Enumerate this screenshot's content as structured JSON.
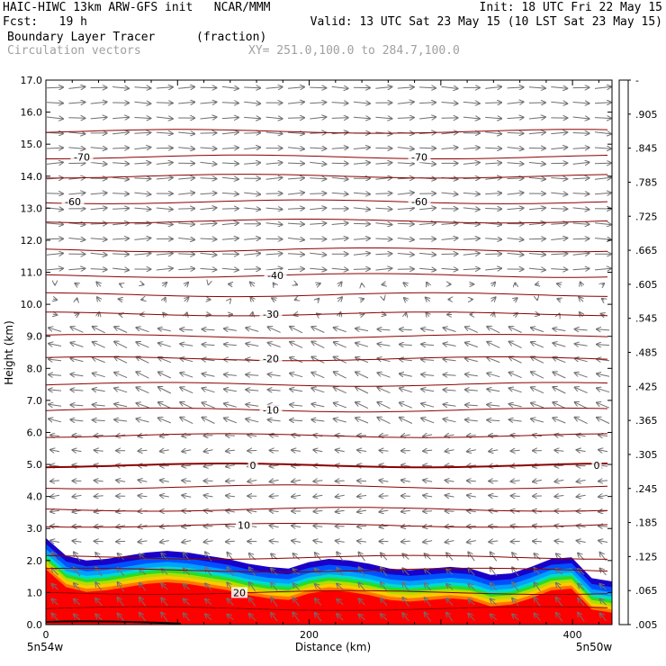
{
  "header": {
    "line1_left": "HAIC-HIWC 13km ARW-GFS init   NCAR/MMM",
    "line1_right": "Init: 18 UTC Fri 22 May 15",
    "line2_left": "Fcst:   19 h",
    "line2_right": "Valid: 13 UTC Sat 23 May 15 (10 LST Sat 23 May 15)",
    "field_name": "Boundary Layer Tracer",
    "field_units": "(fraction)",
    "vector_label": "Circulation vectors",
    "xy_range": "XY= 251.0,100.0 to 284.7,100.0"
  },
  "chart_data": {
    "type": "cross-section",
    "ylabel": "Height (km)",
    "xlabel": "Distance (km)",
    "ylim": [
      0,
      17
    ],
    "xlim": [
      0,
      430
    ],
    "y_ticks": [
      "0.0",
      "1.0",
      "2.0",
      "3.0",
      "4.0",
      "5.0",
      "6.0",
      "7.0",
      "8.0",
      "9.0",
      "10.0",
      "11.0",
      "12.0",
      "13.0",
      "14.0",
      "15.0",
      "16.0",
      "17.0"
    ],
    "x_ticks": [
      {
        "v": 0,
        "label": "0"
      },
      {
        "v": 200,
        "label": "200"
      },
      {
        "v": 400,
        "label": "400"
      }
    ],
    "left_endpoint_label": "5n54w",
    "right_endpoint_label": "5n50w",
    "colorbar": {
      "ticks": [
        ".005",
        ".065",
        ".125",
        ".185",
        ".245",
        ".305",
        ".365",
        ".425",
        ".485",
        ".545",
        ".605",
        ".665",
        ".725",
        ".785",
        ".845",
        ".905",
        "-"
      ],
      "colors": [
        "#ffffff",
        "#1a00c8",
        "#0046ff",
        "#0096ff",
        "#00c8ff",
        "#00e6c8",
        "#00dc78",
        "#28dc28",
        "#8cdc00",
        "#dcdc00",
        "#ffc800",
        "#ffa000",
        "#ff7800",
        "#ff5000",
        "#ff2800",
        "#ff0000"
      ]
    },
    "isotherms": [
      {
        "label": "20",
        "h": 1.0,
        "lx": [
          215
        ]
      },
      {
        "label": "10",
        "h": 3.1,
        "lx": [
          220
        ]
      },
      {
        "label": "0",
        "h": 4.97,
        "lx": [
          230,
          612
        ]
      },
      {
        "label": "-10",
        "h": 6.7,
        "lx": [
          250
        ]
      },
      {
        "label": "-20",
        "h": 8.3,
        "lx": [
          250
        ]
      },
      {
        "label": "-30",
        "h": 9.7,
        "lx": [
          250
        ]
      },
      {
        "label": "-40",
        "h": 10.9,
        "lx": [
          255
        ]
      },
      {
        "label": "-60",
        "h": 13.2,
        "lx": [
          30,
          415
        ]
      },
      {
        "label": "-70",
        "h": 14.6,
        "lx": [
          40,
          415
        ]
      }
    ],
    "extra_isotherm_heights": [
      0.5,
      1.7,
      2.1,
      3.6,
      4.3,
      5.9,
      7.5,
      9.0,
      10.3,
      11.7,
      12.6,
      14.0,
      15.4
    ],
    "tracer_top_km": [
      2.7,
      2.15,
      2.0,
      2.05,
      2.15,
      2.25,
      2.3,
      2.25,
      2.15,
      2.05,
      1.9,
      1.8,
      1.75,
      1.95,
      2.05,
      2.0,
      1.9,
      1.75,
      1.7,
      1.75,
      1.8,
      1.75,
      1.55,
      1.6,
      1.8,
      2.05,
      2.1,
      1.45,
      1.35
    ],
    "tracer_bands": [
      {
        "offset_km": 0.0,
        "color": "#1a00c8"
      },
      {
        "offset_km": 0.18,
        "color": "#0050ff"
      },
      {
        "offset_km": 0.34,
        "color": "#00a0ff"
      },
      {
        "offset_km": 0.48,
        "color": "#00dcc8"
      },
      {
        "offset_km": 0.58,
        "color": "#28dc28"
      },
      {
        "offset_km": 0.68,
        "color": "#b4dc00"
      },
      {
        "offset_km": 0.78,
        "color": "#ffc800"
      },
      {
        "offset_km": 0.88,
        "color": "#ff7800"
      },
      {
        "offset_km": 0.98,
        "color": "#ff0000"
      }
    ]
  }
}
